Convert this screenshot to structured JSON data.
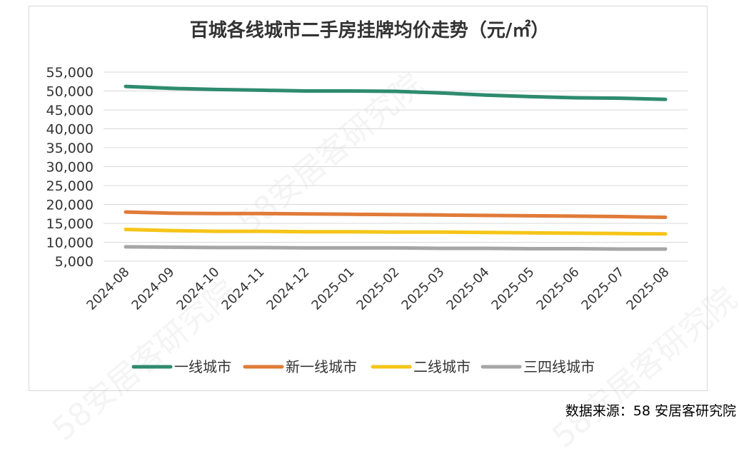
{
  "watermark_text": "58安居客研究院",
  "source_text": "数据来源：58 安居客研究院",
  "chart_data": {
    "type": "line",
    "title": "百城各线城市二手房挂牌均价走势（元/㎡）",
    "xlabel": "",
    "ylabel": "",
    "categories": [
      "2024-08",
      "2024-09",
      "2024-10",
      "2024-11",
      "2024-12",
      "2025-01",
      "2025-02",
      "2025-03",
      "2025-04",
      "2025-05",
      "2025-06",
      "2025-07",
      "2025-08"
    ],
    "yticks": [
      "5,000",
      "10,000",
      "15,000",
      "20,000",
      "25,000",
      "30,000",
      "35,000",
      "40,000",
      "45,000",
      "50,000",
      "55,000"
    ],
    "ylim": [
      5000,
      55000
    ],
    "grid": true,
    "legend_position": "bottom",
    "series": [
      {
        "name": "一线城市",
        "color": "#2e8b6e",
        "values": [
          51200,
          50700,
          50400,
          50200,
          50000,
          50000,
          49900,
          49500,
          48900,
          48500,
          48200,
          48100,
          47800
        ]
      },
      {
        "name": "新一线城市",
        "color": "#e07b39",
        "values": [
          18000,
          17700,
          17600,
          17600,
          17500,
          17400,
          17300,
          17200,
          17100,
          17000,
          16900,
          16800,
          16600
        ]
      },
      {
        "name": "二线城市",
        "color": "#f5c518",
        "values": [
          13400,
          13100,
          12900,
          12900,
          12800,
          12800,
          12700,
          12700,
          12600,
          12500,
          12400,
          12300,
          12200
        ]
      },
      {
        "name": "三四线城市",
        "color": "#a6a6a6",
        "values": [
          8800,
          8700,
          8600,
          8600,
          8500,
          8500,
          8500,
          8400,
          8400,
          8300,
          8300,
          8200,
          8200
        ]
      }
    ]
  }
}
